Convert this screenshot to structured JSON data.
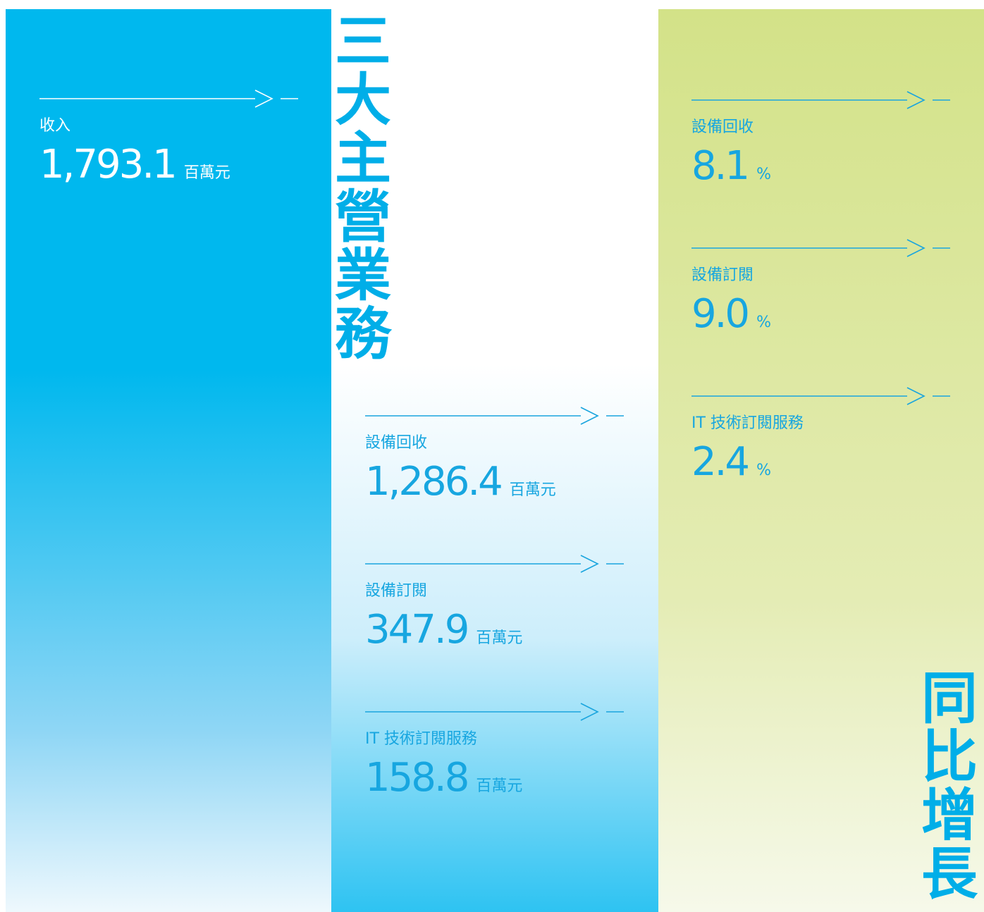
{
  "left": {
    "label": "收入",
    "value": "1,793.1",
    "unit": "百萬元"
  },
  "middle": {
    "title": "三大主營業務",
    "items": [
      {
        "label": "設備回收",
        "value": "1,286.4",
        "unit": "百萬元"
      },
      {
        "label": "設備訂閱",
        "value": "347.9",
        "unit": "百萬元"
      },
      {
        "label": "IT 技術訂閱服務",
        "value": "158.8",
        "unit": "百萬元"
      }
    ]
  },
  "right": {
    "title": "同比增長",
    "items": [
      {
        "label": "設備回收",
        "value": "8.1",
        "unit": "%"
      },
      {
        "label": "設備訂閱",
        "value": "9.0",
        "unit": "%"
      },
      {
        "label": "IT 技術訂閱服務",
        "value": "2.4",
        "unit": "%"
      }
    ]
  }
}
